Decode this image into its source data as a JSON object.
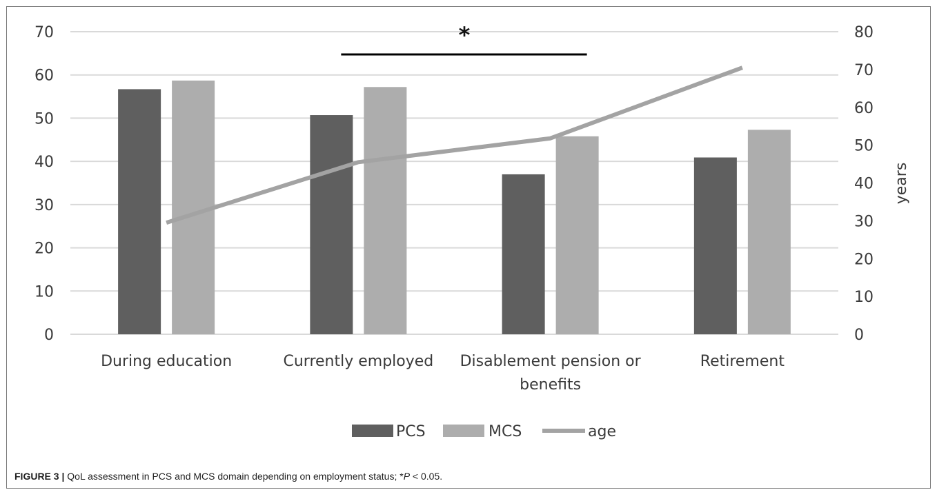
{
  "chart_data": {
    "type": "bar",
    "categories": [
      "During education",
      "Currently employed",
      "Disablement pension or benefits",
      "Retirement"
    ],
    "category_lines": [
      [
        "During education"
      ],
      [
        "Currently employed"
      ],
      [
        "Disablement pension or",
        "benefits"
      ],
      [
        "Retirement"
      ]
    ],
    "series": [
      {
        "name": "PCS",
        "type": "bar",
        "axis": "left",
        "color": "#5f5f5f",
        "values": [
          56.7,
          50.7,
          37.0,
          40.9
        ]
      },
      {
        "name": "MCS",
        "type": "bar",
        "axis": "left",
        "color": "#adadad",
        "values": [
          58.7,
          57.2,
          45.8,
          47.3
        ]
      },
      {
        "name": "age",
        "type": "line",
        "axis": "right",
        "color": "#a3a3a3",
        "values": [
          29.5,
          45.5,
          51.8,
          70.5
        ]
      }
    ],
    "y_left": {
      "min": 0,
      "max": 70,
      "ticks": [
        0,
        10,
        20,
        30,
        40,
        50,
        60,
        70
      ]
    },
    "y_right": {
      "min": 0,
      "max": 80,
      "ticks": [
        0,
        10,
        20,
        30,
        40,
        50,
        60,
        70,
        80
      ],
      "label": "years"
    },
    "grid": true,
    "legend_position": "bottom",
    "significance": {
      "symbol": "*",
      "from_category": 1,
      "to_category": 2
    }
  },
  "caption": {
    "label": "FIGURE 3 |",
    "text_before": " QoL assessment in PCS and MCS domain depending on employment status; *",
    "italic": "P",
    "text_after": " < 0.05."
  }
}
